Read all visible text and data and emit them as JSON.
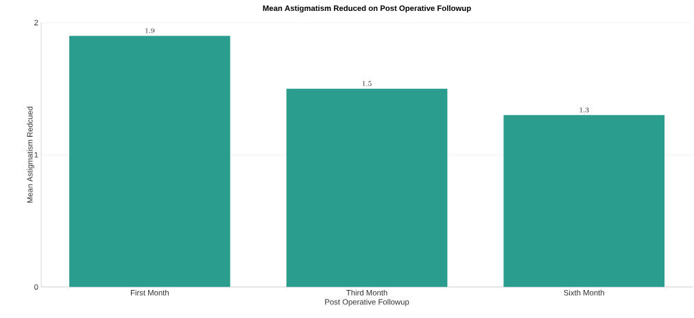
{
  "chart_data": {
    "type": "bar",
    "title": "Mean Astigmatism Reduced on Post Operative Followup",
    "xlabel": "Post Operative Followup",
    "ylabel": "Mean Astigmatism Redcued",
    "categories": [
      "First Month",
      "Third Month",
      "Sixth Month"
    ],
    "values": [
      1.9,
      1.5,
      1.3
    ],
    "color": "#2a9d8f",
    "ylim": [
      0,
      2
    ],
    "yticks": [
      0,
      1,
      2
    ],
    "grid": "y",
    "data_labels": true
  }
}
